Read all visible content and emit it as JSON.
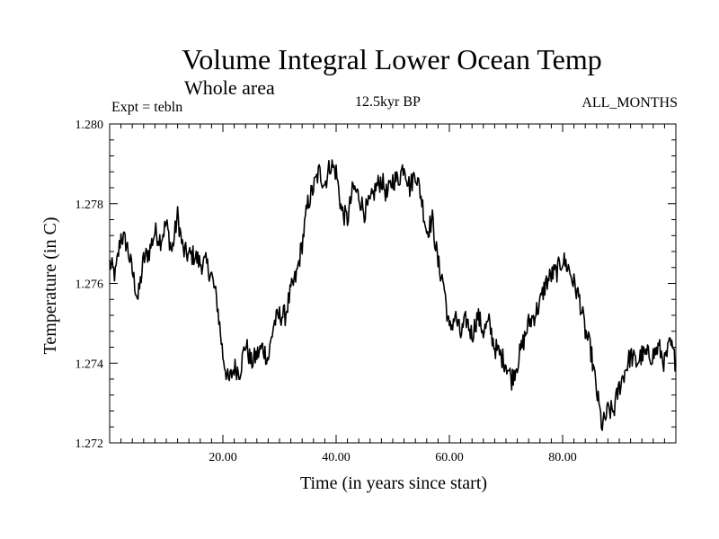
{
  "chart_data": {
    "type": "line",
    "title": "Volume Integral Lower Ocean Temp",
    "subtitle": "Whole area",
    "annotations": {
      "left": "Expt = tebln",
      "center": "12.5kyr BP",
      "right": "ALL_MONTHS"
    },
    "xlabel": "Time (in years since start)",
    "ylabel": "Temperature (in C)",
    "xlim": [
      0,
      100
    ],
    "ylim": [
      1.272,
      1.28
    ],
    "xticks": [
      20,
      40,
      60,
      80
    ],
    "xtick_labels": [
      "20.00",
      "40.00",
      "60.00",
      "80.00"
    ],
    "yticks": [
      1.272,
      1.274,
      1.276,
      1.278,
      1.28
    ],
    "ytick_labels": [
      "1.272",
      "1.274",
      "1.276",
      "1.278",
      "1.280"
    ],
    "series": [
      {
        "name": "tebln",
        "x": [
          0,
          1,
          2,
          3,
          4,
          5,
          6,
          7,
          8,
          9,
          10,
          11,
          12,
          13,
          14,
          15,
          16,
          17,
          18,
          19,
          20,
          21,
          22,
          23,
          24,
          25,
          26,
          27,
          28,
          29,
          30,
          31,
          32,
          33,
          34,
          35,
          36,
          37,
          38,
          39,
          40,
          41,
          42,
          43,
          44,
          45,
          46,
          47,
          48,
          49,
          50,
          51,
          52,
          53,
          54,
          55,
          56,
          57,
          58,
          59,
          60,
          61,
          62,
          63,
          64,
          65,
          66,
          67,
          68,
          69,
          70,
          71,
          72,
          73,
          74,
          75,
          76,
          77,
          78,
          79,
          80,
          81,
          82,
          83,
          84,
          85,
          86,
          87,
          88,
          89,
          90,
          91,
          92,
          93,
          94,
          95,
          96,
          97,
          98,
          99,
          100
        ],
        "values": [
          1.2765,
          1.2762,
          1.2772,
          1.277,
          1.2763,
          1.2756,
          1.2766,
          1.2768,
          1.2773,
          1.2771,
          1.2775,
          1.2768,
          1.2777,
          1.2768,
          1.2767,
          1.2767,
          1.2765,
          1.2765,
          1.2762,
          1.2755,
          1.2742,
          1.2735,
          1.2739,
          1.2738,
          1.2745,
          1.274,
          1.2742,
          1.2744,
          1.2741,
          1.275,
          1.2752,
          1.2752,
          1.2758,
          1.2762,
          1.277,
          1.278,
          1.2784,
          1.2788,
          1.2785,
          1.279,
          1.2788,
          1.2778,
          1.2776,
          1.2784,
          1.2782,
          1.2778,
          1.278,
          1.2784,
          1.2786,
          1.2782,
          1.2786,
          1.2786,
          1.279,
          1.2784,
          1.2788,
          1.2782,
          1.2773,
          1.2776,
          1.2765,
          1.276,
          1.2748,
          1.2752,
          1.2747,
          1.2751,
          1.2747,
          1.2752,
          1.2748,
          1.275,
          1.2744,
          1.2742,
          1.274,
          1.2736,
          1.274,
          1.2745,
          1.275,
          1.2752,
          1.2755,
          1.276,
          1.2762,
          1.2763,
          1.2766,
          1.2764,
          1.276,
          1.2756,
          1.2748,
          1.2743,
          1.2733,
          1.2724,
          1.2728,
          1.2728,
          1.2734,
          1.2738,
          1.2742,
          1.274,
          1.2742,
          1.2742,
          1.2742,
          1.2744,
          1.274,
          1.2745,
          1.274
        ]
      }
    ],
    "grid": false,
    "line_color": "#000000"
  }
}
